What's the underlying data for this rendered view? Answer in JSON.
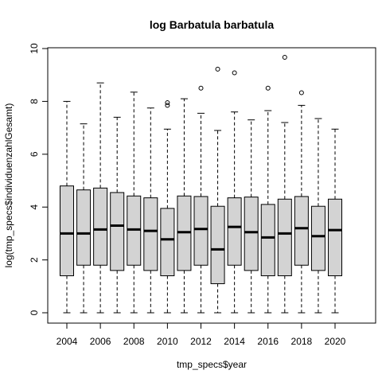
{
  "chart_data": {
    "type": "boxplot",
    "title": "log Barbatula barbatula",
    "xlabel": "tmp_specs$year",
    "ylabel": "log(tmp_specs$individuenzahlGesamt)",
    "ylim": [
      0,
      10
    ],
    "y_ticks": [
      0,
      2,
      4,
      6,
      8,
      10
    ],
    "x_tick_labels": [
      "2004",
      "2006",
      "2008",
      "2010",
      "2012",
      "2014",
      "2016",
      "2018",
      "2020"
    ],
    "categories": [
      2004,
      2005,
      2006,
      2007,
      2008,
      2009,
      2010,
      2011,
      2012,
      2013,
      2014,
      2015,
      2016,
      2017,
      2018,
      2019,
      2020
    ],
    "boxes": [
      {
        "year": 2004,
        "whisker_low": 0,
        "q1": 1.4,
        "median": 3.0,
        "q3": 4.8,
        "whisker_high": 8.0,
        "outliers": []
      },
      {
        "year": 2005,
        "whisker_low": 0,
        "q1": 1.8,
        "median": 3.0,
        "q3": 4.65,
        "whisker_high": 7.15,
        "outliers": []
      },
      {
        "year": 2006,
        "whisker_low": 0,
        "q1": 1.8,
        "median": 3.15,
        "q3": 4.72,
        "whisker_high": 8.7,
        "outliers": []
      },
      {
        "year": 2007,
        "whisker_low": 0,
        "q1": 1.6,
        "median": 3.3,
        "q3": 4.55,
        "whisker_high": 7.4,
        "outliers": []
      },
      {
        "year": 2008,
        "whisker_low": 0,
        "q1": 1.8,
        "median": 3.15,
        "q3": 4.42,
        "whisker_high": 8.35,
        "outliers": []
      },
      {
        "year": 2009,
        "whisker_low": 0,
        "q1": 1.6,
        "median": 3.1,
        "q3": 4.35,
        "whisker_high": 7.75,
        "outliers": []
      },
      {
        "year": 2010,
        "whisker_low": 0,
        "q1": 1.4,
        "median": 2.78,
        "q3": 3.95,
        "whisker_high": 6.95,
        "outliers": [
          7.85,
          7.95
        ]
      },
      {
        "year": 2011,
        "whisker_low": 0,
        "q1": 1.6,
        "median": 3.05,
        "q3": 4.42,
        "whisker_high": 8.1,
        "outliers": []
      },
      {
        "year": 2012,
        "whisker_low": 0,
        "q1": 1.8,
        "median": 3.17,
        "q3": 4.4,
        "whisker_high": 7.55,
        "outliers": [
          8.5
        ]
      },
      {
        "year": 2013,
        "whisker_low": 0,
        "q1": 1.1,
        "median": 2.4,
        "q3": 4.03,
        "whisker_high": 6.9,
        "outliers": [
          9.22
        ]
      },
      {
        "year": 2014,
        "whisker_low": 0,
        "q1": 1.8,
        "median": 3.25,
        "q3": 4.35,
        "whisker_high": 7.6,
        "outliers": [
          9.08
        ]
      },
      {
        "year": 2015,
        "whisker_low": 0,
        "q1": 1.6,
        "median": 3.05,
        "q3": 4.38,
        "whisker_high": 7.3,
        "outliers": []
      },
      {
        "year": 2016,
        "whisker_low": 0,
        "q1": 1.4,
        "median": 2.85,
        "q3": 4.1,
        "whisker_high": 7.65,
        "outliers": [
          8.5
        ]
      },
      {
        "year": 2017,
        "whisker_low": 0,
        "q1": 1.4,
        "median": 3.0,
        "q3": 4.3,
        "whisker_high": 7.2,
        "outliers": [
          9.67
        ]
      },
      {
        "year": 2018,
        "whisker_low": 0,
        "q1": 1.8,
        "median": 3.2,
        "q3": 4.4,
        "whisker_high": 7.85,
        "outliers": [
          8.33
        ]
      },
      {
        "year": 2019,
        "whisker_low": 0,
        "q1": 1.6,
        "median": 2.9,
        "q3": 4.03,
        "whisker_high": 7.35,
        "outliers": []
      },
      {
        "year": 2020,
        "whisker_low": 0,
        "q1": 1.4,
        "median": 3.13,
        "q3": 4.3,
        "whisker_high": 6.95,
        "outliers": []
      }
    ],
    "box_fill": "#d3d3d3",
    "line_color": "#000000",
    "grid": false,
    "legend": "none"
  }
}
